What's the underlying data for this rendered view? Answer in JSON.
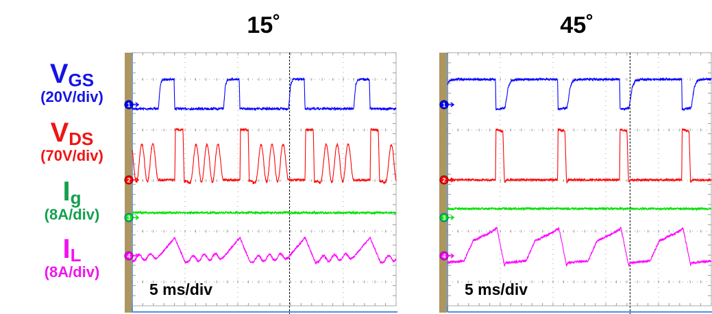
{
  "labels": {
    "vgs": {
      "symbol": "V",
      "sub": "GS",
      "scale": "(20V/div)",
      "color": "#1414e6"
    },
    "vds": {
      "symbol": "V",
      "sub": "DS",
      "scale": "(70V/div)",
      "color": "#f01414"
    },
    "ig": {
      "symbol": "I",
      "sub": "g",
      "scale": "(8A/div)",
      "color": "#14a04e"
    },
    "il": {
      "symbol": "I",
      "sub": "L",
      "scale": "(8A/div)",
      "color": "#f014f0"
    }
  },
  "chart_data": [
    {
      "type": "line",
      "title": "15˚",
      "timebase": "5 ms/div",
      "time_ms_per_div": 5,
      "xlim_ms": [
        0,
        25
      ],
      "trigger_ms": 14.9,
      "series": [
        {
          "name": "VGS",
          "channel": "1",
          "unit": "V",
          "per_div": 20,
          "color": "#0000ff",
          "period_ms": 6.17,
          "phase_ms": 2.47,
          "points": [
            [
              0,
              -1.6
            ],
            [
              0.2,
              8
            ],
            [
              0.4,
              10
            ],
            [
              1.49,
              10
            ],
            [
              1.56,
              -1.6
            ],
            [
              6.17,
              -1.6
            ]
          ],
          "humps": []
        },
        {
          "name": "VDS",
          "channel": "2",
          "unit": "V",
          "per_div": 70,
          "color": "#ff0000",
          "period_ms": 6.17,
          "phase_ms": 2.47,
          "points": [
            [
              0,
              0
            ],
            [
              1.56,
              0
            ],
            [
              1.62,
              70
            ],
            [
              2.34,
              69
            ],
            [
              2.45,
              -2
            ],
            [
              6.17,
              0
            ]
          ],
          "humps": [
            [
              3.57,
              50,
              1.04
            ],
            [
              4.61,
              50,
              1.04
            ],
            [
              5.65,
              50,
              1.04
            ]
          ]
        },
        {
          "name": "Ig",
          "channel": "3",
          "unit": "A",
          "per_div": 8,
          "color": "#00e000",
          "period_ms": 6.17,
          "phase_ms": 0,
          "points": [
            [
              0,
              0.76
            ],
            [
              6.17,
              0.76
            ]
          ],
          "humps": []
        },
        {
          "name": "IL",
          "channel": "4",
          "unit": "A",
          "per_div": 8,
          "color": "#ff00ff",
          "period_ms": 6.17,
          "phase_ms": 2.47,
          "points": [
            [
              0,
              -0.2
            ],
            [
              1.56,
              2.9
            ],
            [
              2.53,
              -1.0
            ],
            [
              5.85,
              -0.5
            ],
            [
              6.17,
              -0.2
            ]
          ],
          "humps": [
            [
              3.3,
              0.9,
              1.04
            ],
            [
              4.35,
              0.9,
              1.04
            ],
            [
              5.4,
              0.9,
              1.04
            ]
          ]
        }
      ]
    },
    {
      "type": "line",
      "title": "45˚",
      "timebase": "5 ms/div",
      "time_ms_per_div": 5,
      "xlim_ms": [
        0,
        25
      ],
      "trigger_ms": 17.3,
      "series": [
        {
          "name": "VGS",
          "channel": "1",
          "unit": "V",
          "per_div": 20,
          "color": "#0000ff",
          "period_ms": 5.88,
          "phase_ms": 4.55,
          "points": [
            [
              0,
              10
            ],
            [
              0.05,
              -1.8
            ],
            [
              0.9,
              -1.3
            ],
            [
              1.2,
              7
            ],
            [
              1.5,
              9.5
            ],
            [
              2.0,
              10
            ],
            [
              5.88,
              10
            ]
          ],
          "humps": []
        },
        {
          "name": "VDS",
          "channel": "2",
          "unit": "V",
          "per_div": 70,
          "color": "#ff0000",
          "period_ms": 5.88,
          "phase_ms": 4.55,
          "points": [
            [
              0,
              0
            ],
            [
              0.05,
              70
            ],
            [
              0.7,
              67
            ],
            [
              0.84,
              0
            ],
            [
              0.88,
              -4
            ],
            [
              1.0,
              0
            ],
            [
              5.88,
              0
            ]
          ],
          "humps": []
        },
        {
          "name": "Ig",
          "channel": "3",
          "unit": "A",
          "per_div": 8,
          "color": "#00e000",
          "period_ms": 5.88,
          "phase_ms": 0,
          "points": [
            [
              0,
              1.4
            ],
            [
              5.88,
              1.4
            ]
          ],
          "humps": []
        },
        {
          "name": "IL",
          "channel": "4",
          "unit": "A",
          "per_div": 8,
          "color": "#ff00ff",
          "period_ms": 5.88,
          "phase_ms": 4.55,
          "points": [
            [
              0,
              4.2
            ],
            [
              0.13,
              4.4
            ],
            [
              0.85,
              -1.5
            ],
            [
              0.95,
              -1.1
            ],
            [
              2.9,
              -0.8
            ],
            [
              3.75,
              2.4
            ],
            [
              4.2,
              2.7
            ],
            [
              4.5,
              3.0
            ],
            [
              4.9,
              3.3
            ],
            [
              5.0,
              3.3
            ],
            [
              5.88,
              4.2
            ]
          ],
          "humps": []
        }
      ]
    }
  ]
}
